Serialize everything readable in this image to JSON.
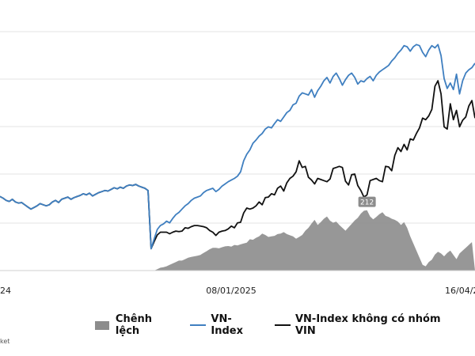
{
  "chart_data": {
    "type": "line",
    "title": "",
    "xlabel": "",
    "ylabel": "",
    "x_tick_labels": [
      "24",
      "08/01/2025",
      "16/04/20"
    ],
    "grid": "horizontal",
    "legend_position": "bottom",
    "annotation": "212",
    "series": [
      {
        "name": "Chênh lệch",
        "kind": "area",
        "color": "#8c8c8c",
        "values": [
          0,
          0,
          0,
          0,
          0,
          0,
          0,
          0,
          0,
          0,
          0,
          0,
          0,
          0,
          0,
          0,
          0,
          0,
          0,
          0,
          0,
          0,
          0,
          0,
          0,
          0,
          0,
          0,
          0,
          0,
          0,
          0,
          0,
          0,
          0,
          0,
          0,
          0,
          0,
          0,
          0,
          0,
          0,
          0,
          0,
          0,
          0,
          0,
          0,
          0,
          0,
          5,
          10,
          12,
          15,
          20,
          25,
          30,
          35,
          35,
          40,
          45,
          48,
          50,
          52,
          55,
          62,
          68,
          75,
          80,
          80,
          78,
          82,
          85,
          86,
          84,
          90,
          88,
          92,
          95,
          98,
          110,
          108,
          115,
          120,
          130,
          125,
          118,
          120,
          122,
          128,
          130,
          135,
          128,
          124,
          120,
          112,
          118,
          125,
          140,
          150,
          165,
          178,
          160,
          170,
          182,
          190,
          175,
          168,
          172,
          160,
          150,
          140,
          152,
          164,
          176,
          185,
          200,
          210,
          212,
          190,
          180,
          188,
          198,
          205,
          192,
          188,
          182,
          178,
          172,
          160,
          170,
          150,
          120,
          95,
          70,
          45,
          20,
          15,
          30,
          38,
          56,
          66,
          60,
          50,
          62,
          70,
          55,
          40,
          60,
          70,
          80,
          90,
          100
        ]
      },
      {
        "name": "VN-Index",
        "kind": "line",
        "color": "#3f7fc0",
        "values": [
          1285,
          1282,
          1278,
          1276,
          1280,
          1275,
          1273,
          1274,
          1270,
          1266,
          1262,
          1265,
          1268,
          1272,
          1270,
          1268,
          1270,
          1275,
          1278,
          1274,
          1280,
          1282,
          1284,
          1280,
          1283,
          1285,
          1287,
          1290,
          1288,
          1291,
          1286,
          1289,
          1292,
          1294,
          1296,
          1295,
          1298,
          1301,
          1299,
          1302,
          1300,
          1304,
          1306,
          1305,
          1307,
          1304,
          1302,
          1300,
          1296,
          1190,
          1208,
          1225,
          1232,
          1235,
          1240,
          1237,
          1245,
          1252,
          1256,
          1262,
          1268,
          1272,
          1278,
          1282,
          1284,
          1286,
          1292,
          1296,
          1298,
          1300,
          1294,
          1298,
          1304,
          1308,
          1312,
          1315,
          1318,
          1322,
          1330,
          1350,
          1362,
          1370,
          1382,
          1388,
          1395,
          1400,
          1408,
          1412,
          1410,
          1418,
          1425,
          1422,
          1430,
          1438,
          1442,
          1452,
          1455,
          1468,
          1474,
          1472,
          1470,
          1480,
          1466,
          1478,
          1486,
          1496,
          1502,
          1492,
          1504,
          1510,
          1500,
          1488,
          1498,
          1506,
          1510,
          1502,
          1490,
          1496,
          1494,
          1500,
          1504,
          1496,
          1506,
          1512,
          1516,
          1520,
          1524,
          1532,
          1538,
          1546,
          1552,
          1560,
          1558,
          1550,
          1558,
          1562,
          1560,
          1548,
          1540,
          1552,
          1560,
          1556,
          1562,
          1542,
          1500,
          1482,
          1492,
          1480,
          1508,
          1472,
          1496,
          1510,
          1516,
          1520,
          1528
        ]
      },
      {
        "name": "VN-Index không có nhóm VIN",
        "kind": "line",
        "color": "#111111",
        "values": [
          1285,
          1282,
          1278,
          1276,
          1280,
          1275,
          1273,
          1274,
          1270,
          1266,
          1262,
          1265,
          1268,
          1272,
          1270,
          1268,
          1270,
          1275,
          1278,
          1274,
          1280,
          1282,
          1284,
          1280,
          1283,
          1285,
          1287,
          1290,
          1288,
          1291,
          1286,
          1289,
          1292,
          1294,
          1296,
          1295,
          1298,
          1301,
          1299,
          1302,
          1300,
          1304,
          1306,
          1305,
          1307,
          1304,
          1302,
          1300,
          1296,
          1190,
          1203,
          1215,
          1220,
          1220,
          1220,
          1217,
          1220,
          1222,
          1221,
          1222,
          1228,
          1227,
          1230,
          1232,
          1232,
          1231,
          1230,
          1228,
          1223,
          1220,
          1214,
          1220,
          1222,
          1223,
          1226,
          1231,
          1228,
          1237,
          1238,
          1255,
          1264,
          1262,
          1264,
          1268,
          1275,
          1270,
          1283,
          1284,
          1290,
          1288,
          1300,
          1304,
          1295,
          1310,
          1318,
          1322,
          1330,
          1350,
          1338,
          1340,
          1320,
          1315,
          1308,
          1318,
          1316,
          1314,
          1312,
          1317,
          1336,
          1338,
          1340,
          1338,
          1313,
          1306,
          1325,
          1326,
          1305,
          1296,
          1284,
          1288,
          1314,
          1316,
          1318,
          1314,
          1312,
          1340,
          1339,
          1332,
          1360,
          1374,
          1367,
          1380,
          1370,
          1390,
          1388,
          1400,
          1410,
          1428,
          1425,
          1432,
          1444,
          1486,
          1496,
          1472,
          1412,
          1408,
          1454,
          1425,
          1442,
          1412,
          1424,
          1430,
          1450,
          1460,
          1428
        ]
      }
    ],
    "ylim": [
      1150,
      1600
    ]
  },
  "legend": {
    "items": [
      {
        "label": "Chênh lệch",
        "type": "box",
        "color": "#8c8c8c"
      },
      {
        "label": "VN-Index",
        "type": "line",
        "color": "#3f7fc0"
      },
      {
        "label": "VN-Index không có nhóm VIN",
        "type": "line",
        "color": "#111111"
      }
    ]
  },
  "source_text": "ket"
}
